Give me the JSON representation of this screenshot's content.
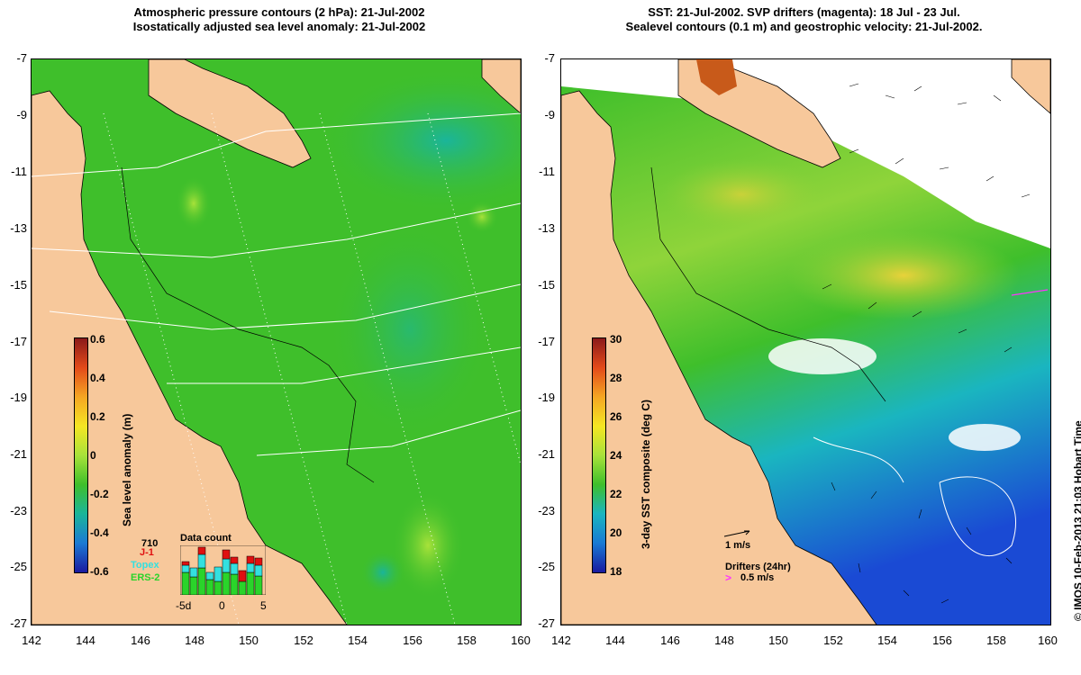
{
  "left_panel": {
    "title_line1": "Atmospheric pressure contours (2 hPa): 21-Jul-2002",
    "title_line2": "Isostatically adjusted sea level anomaly: 21-Jul-2002",
    "y_ticks": [
      "-7",
      "-9",
      "-11",
      "-13",
      "-15",
      "-17",
      "-19",
      "-21",
      "-23",
      "-25",
      "-27"
    ],
    "x_ticks": [
      "142",
      "144",
      "146",
      "148",
      "150",
      "152",
      "154",
      "156",
      "158",
      "160"
    ],
    "colorbar": {
      "title": "Sea level anomaly (m)",
      "labels": [
        "0.6",
        "0.4",
        "0.2",
        "0",
        "-0.2",
        "-0.4",
        "-0.6"
      ]
    },
    "data_count": {
      "title": "Data count",
      "max_label": "710",
      "missions": [
        "J-1",
        "Topex",
        "ERS-2"
      ],
      "x_labels": [
        "-5d",
        "0",
        "5"
      ]
    }
  },
  "right_panel": {
    "title_line1": "SST: 21-Jul-2002. SVP drifters (magenta): 18 Jul - 23 Jul.",
    "title_line2": "Sealevel contours (0.1 m) and geostrophic velocity: 21-Jul-2002.",
    "y_ticks": [
      "-7",
      "-9",
      "-11",
      "-13",
      "-15",
      "-17",
      "-19",
      "-21",
      "-23",
      "-25",
      "-27"
    ],
    "x_ticks": [
      "142",
      "144",
      "146",
      "148",
      "150",
      "152",
      "154",
      "156",
      "158",
      "160"
    ],
    "colorbar": {
      "title": "3-day SST composite (deg C)",
      "labels": [
        "30",
        "28",
        "26",
        "24",
        "22",
        "20",
        "18"
      ]
    },
    "velocity_legend": "1 m/s",
    "drifter_legend_title": "Drifters (24hr)",
    "drifter_legend_value": "0.5 m/s"
  },
  "credit": "© IMOS 10-Feb-2013 21:03 Hobart Time",
  "colors": {
    "land": "#f7c89b",
    "ocean_green": "#3fbf2b",
    "magenta": "#ff33ff"
  }
}
